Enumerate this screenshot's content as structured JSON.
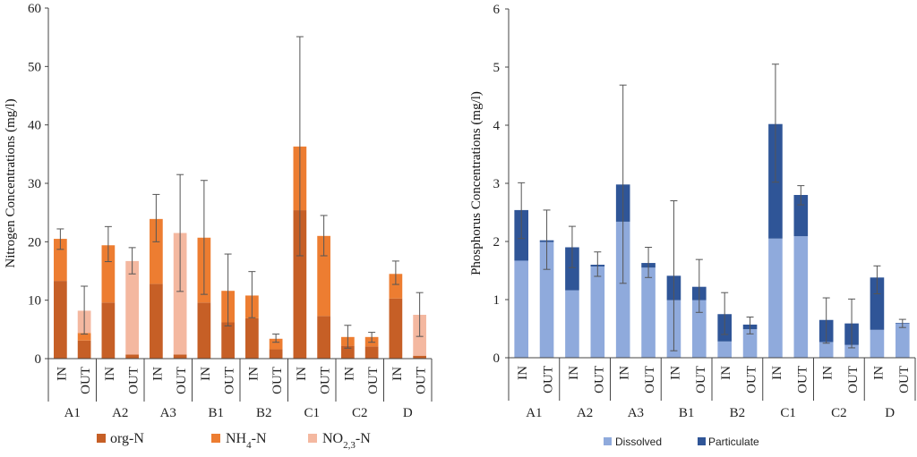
{
  "chart_data": [
    {
      "type": "bar",
      "stacked": true,
      "ylabel": "Nitrogen Concentrations  (mg/l)",
      "ylim": [
        0,
        60
      ],
      "yticks": [
        0,
        10,
        20,
        30,
        40,
        50,
        60
      ],
      "groups": [
        "A1",
        "A2",
        "A3",
        "B1",
        "B2",
        "C1",
        "C2",
        "D"
      ],
      "categories": [
        "IN",
        "OUT",
        "IN",
        "OUT",
        "IN",
        "OUT",
        "IN",
        "OUT",
        "IN",
        "OUT",
        "IN",
        "OUT",
        "IN",
        "OUT",
        "IN",
        "OUT"
      ],
      "series": [
        {
          "name": "org-N",
          "legend_base": "org-N",
          "legend_sub": "",
          "legend_tail": "",
          "color": "#c65f26",
          "values": [
            13.3,
            3.1,
            9.6,
            0.7,
            12.8,
            0.7,
            9.6,
            6.2,
            6.9,
            1.6,
            25.4,
            7.3,
            2.2,
            2.1,
            10.3,
            0.5
          ]
        },
        {
          "name": "NH4-N",
          "legend_base": "NH",
          "legend_sub": "4",
          "legend_tail": "-N",
          "color": "#ed7d31",
          "values": [
            7.2,
            1.3,
            9.8,
            0.0,
            11.1,
            0.0,
            11.1,
            5.4,
            3.9,
            1.8,
            10.9,
            13.7,
            1.5,
            1.6,
            4.2,
            0.0
          ]
        },
        {
          "name": "NO2,3-N",
          "legend_base": "NO",
          "legend_sub": "2,3",
          "legend_tail": "-N",
          "color": "#f4b8a0",
          "values": [
            0.0,
            3.8,
            0.0,
            16.0,
            0.0,
            20.8,
            0.0,
            0.0,
            0.0,
            0.0,
            0.0,
            0.0,
            0.0,
            0.0,
            0.0,
            7.0
          ]
        }
      ],
      "error_bars": [
        [
          18.7,
          22.2
        ],
        [
          4.2,
          12.4
        ],
        [
          16.6,
          22.6
        ],
        [
          14.5,
          19.0
        ],
        [
          20.0,
          28.1
        ],
        [
          11.5,
          31.5
        ],
        [
          11.0,
          30.5
        ],
        [
          5.6,
          17.9
        ],
        [
          7.0,
          14.9
        ],
        [
          2.8,
          4.2
        ],
        [
          17.6,
          55.1
        ],
        [
          17.6,
          24.5
        ],
        [
          1.8,
          5.7
        ],
        [
          2.8,
          4.5
        ],
        [
          12.7,
          16.7
        ],
        [
          3.8,
          11.3
        ]
      ],
      "legend_position": "bottom"
    },
    {
      "type": "bar",
      "stacked": true,
      "ylabel": "Phosphorus Concentrations  (mg/l)",
      "ylim": [
        0,
        6
      ],
      "yticks": [
        0,
        1,
        2,
        3,
        4,
        5,
        6
      ],
      "groups": [
        "A1",
        "A2",
        "A3",
        "B1",
        "B2",
        "C1",
        "C2",
        "D"
      ],
      "categories": [
        "IN",
        "OUT",
        "IN",
        "OUT",
        "IN",
        "OUT",
        "IN",
        "OUT",
        "IN",
        "OUT",
        "IN",
        "OUT",
        "IN",
        "OUT",
        "IN",
        "OUT"
      ],
      "series": [
        {
          "name": "Dissolved",
          "color": "#8faadc",
          "values": [
            1.67,
            1.99,
            1.16,
            1.57,
            2.34,
            1.55,
            0.99,
            0.99,
            0.28,
            0.49,
            2.05,
            2.09,
            0.27,
            0.22,
            0.48,
            0.59
          ]
        },
        {
          "name": "Particulate",
          "color": "#2f5597",
          "values": [
            0.87,
            0.03,
            0.74,
            0.03,
            0.64,
            0.08,
            0.42,
            0.23,
            0.47,
            0.08,
            1.97,
            0.71,
            0.38,
            0.37,
            0.9,
            0.01
          ]
        }
      ],
      "error_bars": [
        [
          2.05,
          3.01
        ],
        [
          1.52,
          2.54
        ],
        [
          1.55,
          2.26
        ],
        [
          1.4,
          1.82
        ],
        [
          1.28,
          4.69
        ],
        [
          1.38,
          1.9
        ],
        [
          0.12,
          2.7
        ],
        [
          0.78,
          1.69
        ],
        [
          0.4,
          1.12
        ],
        [
          0.41,
          0.7
        ],
        [
          3.02,
          5.05
        ],
        [
          2.63,
          2.96
        ],
        [
          0.25,
          1.03
        ],
        [
          0.17,
          1.01
        ],
        [
          1.1,
          1.58
        ],
        [
          0.52,
          0.66
        ]
      ],
      "legend_position": "bottom"
    }
  ]
}
